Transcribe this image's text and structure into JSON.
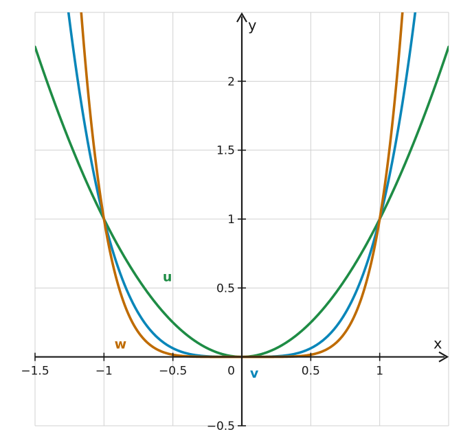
{
  "chart_data": {
    "type": "line",
    "xlabel": "x",
    "ylabel": "y",
    "xlim": [
      -1.5,
      1.5
    ],
    "ylim": [
      -0.5,
      2.5
    ],
    "grid": true,
    "x_ticks": [
      -1.5,
      -1,
      -0.5,
      0.5,
      1
    ],
    "x_tick_labels": [
      "−1.5",
      "−1",
      "−0.5",
      "0.5",
      "1"
    ],
    "y_ticks": [
      -0.5,
      0.5,
      1,
      1.5,
      2
    ],
    "y_tick_labels": [
      "−0.5",
      "0.5",
      "1",
      "1.5",
      "2"
    ],
    "origin_label": "0",
    "series": [
      {
        "name": "u",
        "color": "#1e8c45",
        "x": [
          -1.5,
          -1.25,
          -1,
          -0.75,
          -0.5,
          -0.25,
          0,
          0.25,
          0.5,
          0.75,
          1,
          1.25,
          1.5
        ],
        "y": [
          2.25,
          1.5625,
          1,
          0.5625,
          0.25,
          0.0625,
          0,
          0.0625,
          0.25,
          0.5625,
          1,
          1.5625,
          2.25
        ]
      },
      {
        "name": "v",
        "color": "#0a86b9",
        "x": [
          -1.25,
          -1,
          -0.75,
          -0.5,
          -0.25,
          0,
          0.25,
          0.5,
          0.75,
          1,
          1.25
        ],
        "y": [
          2.441,
          1,
          0.3164,
          0.0625,
          0.0039,
          0,
          0.0039,
          0.0625,
          0.3164,
          1,
          2.441
        ]
      },
      {
        "name": "w",
        "color": "#bf6b00",
        "x": [
          -1.16,
          -1,
          -0.75,
          -0.5,
          -0.25,
          0,
          0.25,
          0.5,
          0.75,
          1,
          1.16
        ],
        "y": [
          2.44,
          1,
          0.178,
          0.0156,
          0.0002,
          0,
          0.0002,
          0.0156,
          0.178,
          1,
          2.44
        ]
      }
    ]
  }
}
